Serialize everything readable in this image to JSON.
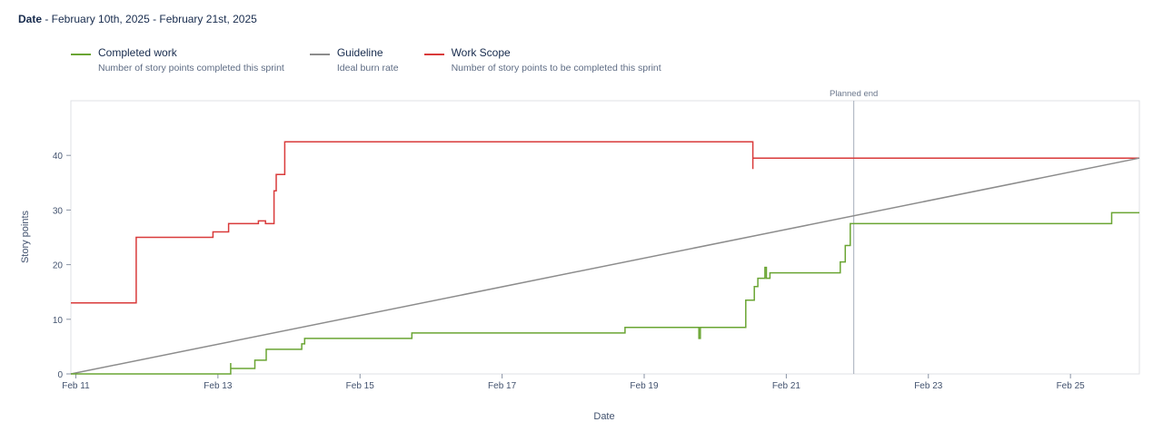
{
  "header": {
    "date_label": "Date",
    "date_range": " - February 10th, 2025 - February 21st, 2025"
  },
  "legend": [
    {
      "name": "Completed work",
      "description": "Number of story points completed this sprint",
      "color": "#6aa533"
    },
    {
      "name": "Guideline",
      "description": "Ideal burn rate",
      "color": "#8c8c8c"
    },
    {
      "name": "Work Scope",
      "description": "Number of story points to be completed this sprint",
      "color": "#d93a3a"
    }
  ],
  "chart_data": {
    "type": "line",
    "xlabel": "Date",
    "ylabel": "Story points",
    "xlim": [
      10.93,
      25.97
    ],
    "ylim": [
      0,
      50
    ],
    "x_unit": "day of February 2025",
    "x_ticks": [
      {
        "x": 11,
        "label": "Feb 11"
      },
      {
        "x": 13,
        "label": "Feb 13"
      },
      {
        "x": 15,
        "label": "Feb 15"
      },
      {
        "x": 17,
        "label": "Feb 17"
      },
      {
        "x": 19,
        "label": "Feb 19"
      },
      {
        "x": 21,
        "label": "Feb 21"
      },
      {
        "x": 23,
        "label": "Feb 23"
      },
      {
        "x": 25,
        "label": "Feb 25"
      }
    ],
    "y_ticks": [
      0,
      10,
      20,
      30,
      40
    ],
    "planned_end": {
      "x": 21.95,
      "label": "Planned end"
    },
    "series": [
      {
        "name": "Work Scope",
        "color": "#d93a3a",
        "points": [
          [
            10.93,
            13
          ],
          [
            11.85,
            13
          ],
          [
            11.85,
            25
          ],
          [
            12.93,
            25
          ],
          [
            12.93,
            26
          ],
          [
            13.15,
            26
          ],
          [
            13.15,
            27.5
          ],
          [
            13.57,
            27.5
          ],
          [
            13.57,
            28
          ],
          [
            13.67,
            28
          ],
          [
            13.67,
            27.5
          ],
          [
            13.79,
            27.5
          ],
          [
            13.79,
            33.5
          ],
          [
            13.82,
            33.5
          ],
          [
            13.82,
            36.5
          ],
          [
            13.94,
            36.5
          ],
          [
            13.94,
            42.5
          ],
          [
            20.53,
            42.5
          ],
          [
            20.53,
            37.5
          ],
          [
            20.53,
            39.5
          ],
          [
            25.97,
            39.5
          ]
        ]
      },
      {
        "name": "Guideline",
        "color": "#8c8c8c",
        "points": [
          [
            10.93,
            0
          ],
          [
            25.97,
            39.5
          ]
        ]
      },
      {
        "name": "Completed work",
        "color": "#6aa533",
        "points": [
          [
            10.93,
            0
          ],
          [
            13.18,
            0
          ],
          [
            13.18,
            2
          ],
          [
            13.18,
            1
          ],
          [
            13.52,
            1
          ],
          [
            13.52,
            2.5
          ],
          [
            13.68,
            2.5
          ],
          [
            13.68,
            4.5
          ],
          [
            14.18,
            4.5
          ],
          [
            14.18,
            5.5
          ],
          [
            14.22,
            5.5
          ],
          [
            14.22,
            6.5
          ],
          [
            15.73,
            6.5
          ],
          [
            15.73,
            7.5
          ],
          [
            18.73,
            7.5
          ],
          [
            18.73,
            8.5
          ],
          [
            19.77,
            8.5
          ],
          [
            19.77,
            6.5
          ],
          [
            19.79,
            6.5
          ],
          [
            19.79,
            8.5
          ],
          [
            20.43,
            8.5
          ],
          [
            20.43,
            13.5
          ],
          [
            20.55,
            13.5
          ],
          [
            20.55,
            16
          ],
          [
            20.6,
            16
          ],
          [
            20.6,
            17.5
          ],
          [
            20.7,
            17.5
          ],
          [
            20.7,
            19.5
          ],
          [
            20.72,
            19.5
          ],
          [
            20.72,
            17.5
          ],
          [
            20.77,
            17.5
          ],
          [
            20.77,
            18.5
          ],
          [
            21.76,
            18.5
          ],
          [
            21.76,
            20.5
          ],
          [
            21.83,
            20.5
          ],
          [
            21.83,
            23.5
          ],
          [
            21.9,
            23.5
          ],
          [
            21.9,
            27.5
          ],
          [
            25.58,
            27.5
          ],
          [
            25.58,
            29.5
          ],
          [
            25.97,
            29.5
          ]
        ]
      }
    ]
  }
}
